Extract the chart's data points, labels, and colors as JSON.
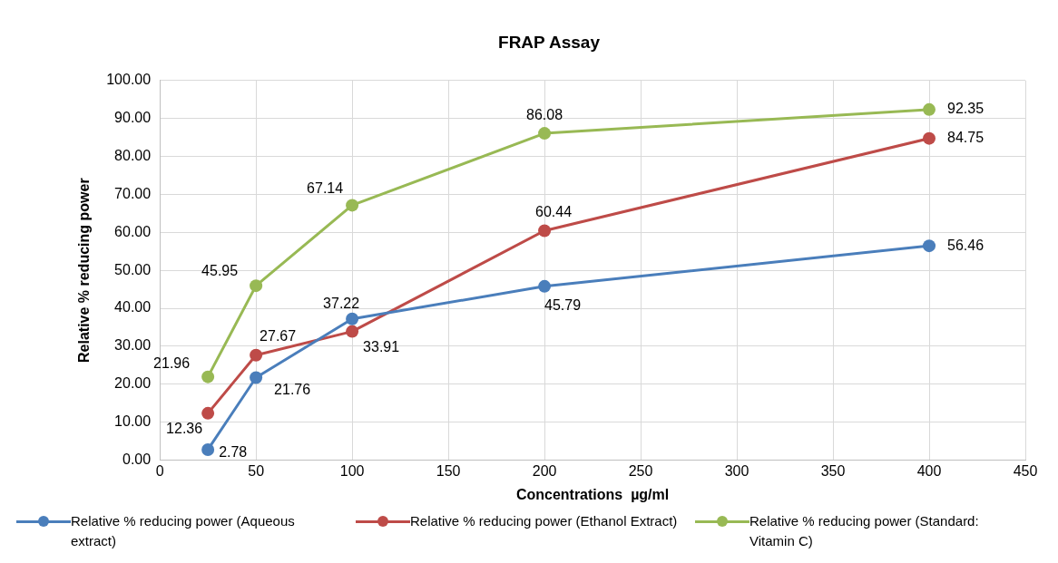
{
  "chart_data": {
    "type": "line",
    "title": "FRAP Assay",
    "xlabel": "Concentrations  µg/ml",
    "ylabel": "Relative % reducing power",
    "x": [
      25,
      50,
      100,
      200,
      400
    ],
    "series": [
      {
        "name": "Relative % reducing power (Aqueous extract)",
        "color": "#4a7ebb",
        "values": [
          2.78,
          21.76,
          37.22,
          45.79,
          56.46
        ]
      },
      {
        "name": "Relative % reducing power (Ethanol Extract)",
        "color": "#be4b48",
        "values": [
          12.36,
          27.67,
          33.91,
          60.44,
          84.75
        ]
      },
      {
        "name": "Relative % reducing power (Standard: Vitamin C)",
        "color": "#98b954",
        "values": [
          21.96,
          45.95,
          67.14,
          86.08,
          92.35
        ]
      }
    ],
    "xlim": [
      0,
      450
    ],
    "xticks": [
      0,
      50,
      100,
      150,
      200,
      250,
      300,
      350,
      400,
      450
    ],
    "ylim": [
      0,
      100
    ],
    "yticks": [
      {
        "value": 0,
        "label": "0.00"
      },
      {
        "value": 10,
        "label": "10.00"
      },
      {
        "value": 20,
        "label": "20.00"
      },
      {
        "value": 30,
        "label": "30.00"
      },
      {
        "value": 40,
        "label": "40.00"
      },
      {
        "value": 50,
        "label": "50.00"
      },
      {
        "value": 60,
        "label": "60.00"
      },
      {
        "value": 70,
        "label": "70.00"
      },
      {
        "value": 80,
        "label": "80.00"
      },
      {
        "value": 90,
        "label": "90.00"
      },
      {
        "value": 100,
        "label": "100.00"
      }
    ],
    "grid": true,
    "legend": "bottom",
    "marker": "circle",
    "line_style": "solid",
    "data_labels": true
  }
}
